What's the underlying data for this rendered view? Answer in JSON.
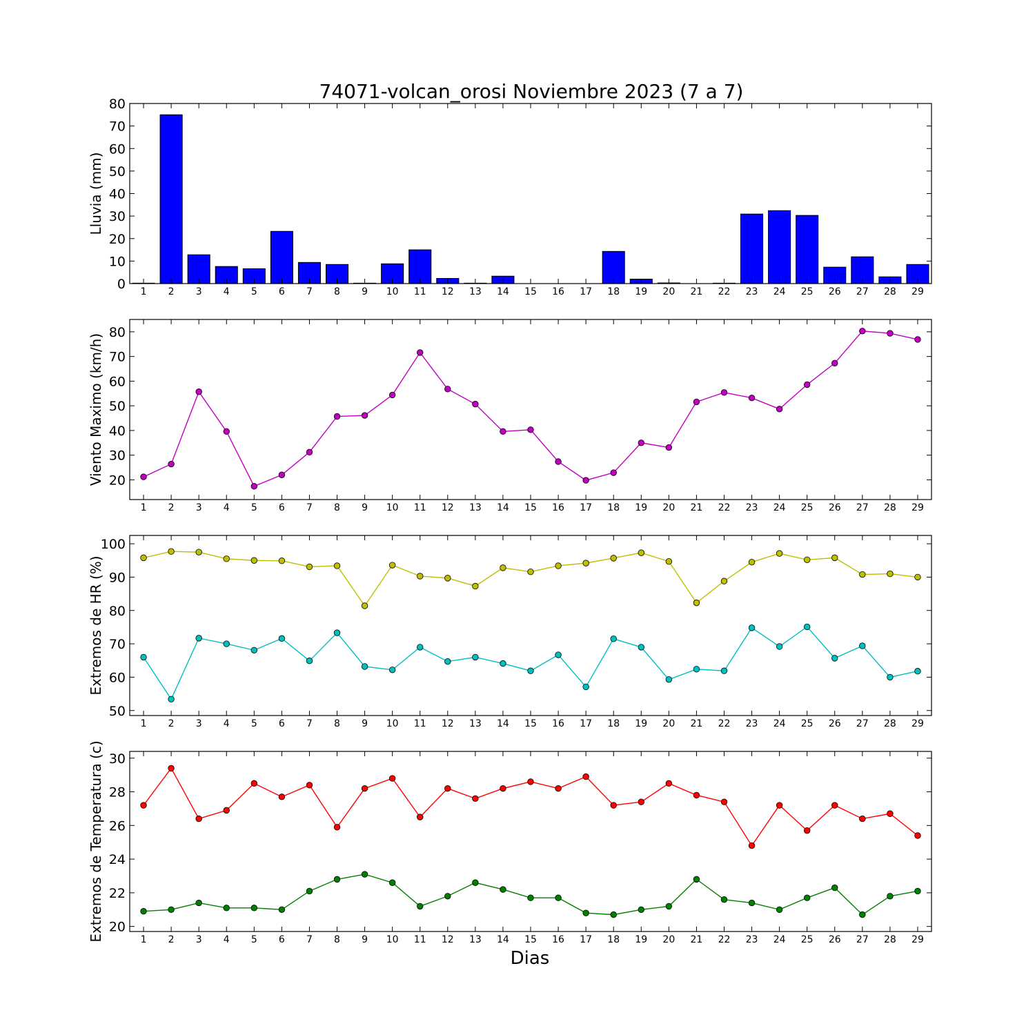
{
  "title": "74071-volcan_orosi Noviembre 2023  (7 a 7)",
  "xlabel": "Dias",
  "days": [
    1,
    2,
    3,
    4,
    5,
    6,
    7,
    8,
    9,
    10,
    11,
    12,
    13,
    14,
    15,
    16,
    17,
    18,
    19,
    20,
    21,
    22,
    23,
    24,
    25,
    26,
    27,
    28,
    29
  ],
  "chart_data": [
    {
      "type": "bar",
      "ylabel": "Lluvia (mm)",
      "ylim": [
        0,
        80
      ],
      "yticks": [
        0,
        10,
        20,
        30,
        40,
        50,
        60,
        70,
        80
      ],
      "series": [
        {
          "color": "#0000ff",
          "values": [
            0.2,
            75,
            12.8,
            7.6,
            6.6,
            23.2,
            9.4,
            8.5,
            0.2,
            8.8,
            15,
            2.3,
            0.2,
            3.3,
            0,
            0,
            0,
            14.3,
            2,
            0.3,
            0,
            0.2,
            30.9,
            32.4,
            30.3,
            7.3,
            11.9,
            3,
            8.5
          ]
        }
      ],
      "grid": false
    },
    {
      "type": "line",
      "ylabel": "Viento Maximo (km/h)",
      "ylim": [
        12,
        85
      ],
      "yticks": [
        20,
        30,
        40,
        50,
        60,
        70,
        80
      ],
      "series": [
        {
          "color": "#bf00bf",
          "values": [
            21.2,
            26.4,
            55.7,
            39.6,
            17.4,
            22,
            31.2,
            45.7,
            46.1,
            54.4,
            71.6,
            56.8,
            50.7,
            39.6,
            40.3,
            27.4,
            19.8,
            22.9,
            35,
            33.1,
            51.6,
            55.4,
            53.2,
            48.7,
            58.6,
            67.3,
            80.3,
            79.4,
            76.9
          ]
        }
      ],
      "grid": false
    },
    {
      "type": "line",
      "ylabel": "Extremos de HR (%)",
      "ylim": [
        48.5,
        102.5
      ],
      "yticks": [
        50,
        60,
        70,
        80,
        90,
        100
      ],
      "series": [
        {
          "color": "#bfbf00",
          "values": [
            95.8,
            97.7,
            97.5,
            95.5,
            95,
            94.9,
            93.1,
            93.4,
            81.4,
            93.6,
            90.3,
            89.7,
            87.3,
            92.8,
            91.6,
            93.4,
            94.2,
            95.7,
            97.3,
            94.7,
            82.3,
            88.8,
            94.5,
            97.1,
            95.2,
            95.8,
            90.8,
            91,
            90
          ]
        },
        {
          "color": "#00bfbf",
          "values": [
            66,
            53.4,
            71.7,
            70,
            68.1,
            71.6,
            64.9,
            73.3,
            63.2,
            62.2,
            69,
            64.7,
            66,
            64.1,
            61.9,
            66.7,
            57.1,
            71.5,
            69,
            59.3,
            62.4,
            61.9,
            74.8,
            69.2,
            75.1,
            65.7,
            69.4,
            60,
            61.8
          ]
        }
      ],
      "grid": false
    },
    {
      "type": "line",
      "ylabel": "Extremos de Temperatura (c)",
      "ylim": [
        19.7,
        30.4
      ],
      "yticks": [
        20,
        22,
        24,
        26,
        28,
        30
      ],
      "series": [
        {
          "color": "#ff0000",
          "values": [
            27.2,
            29.4,
            26.4,
            26.9,
            28.5,
            27.7,
            28.4,
            25.9,
            28.2,
            28.8,
            26.5,
            28.2,
            27.6,
            28.2,
            28.6,
            28.2,
            28.9,
            27.2,
            27.4,
            28.5,
            27.8,
            27.4,
            24.8,
            27.2,
            25.7,
            27.2,
            26.4,
            26.7,
            25.4
          ]
        },
        {
          "color": "#008000",
          "values": [
            20.9,
            21,
            21.4,
            21.1,
            21.1,
            21,
            22.1,
            22.8,
            23.1,
            22.6,
            21.2,
            21.8,
            22.6,
            22.2,
            21.7,
            21.7,
            20.8,
            20.7,
            21,
            21.2,
            22.8,
            21.6,
            21.4,
            21,
            21.7,
            22.3,
            20.7,
            21.8,
            22.1
          ]
        }
      ],
      "grid": false
    }
  ]
}
